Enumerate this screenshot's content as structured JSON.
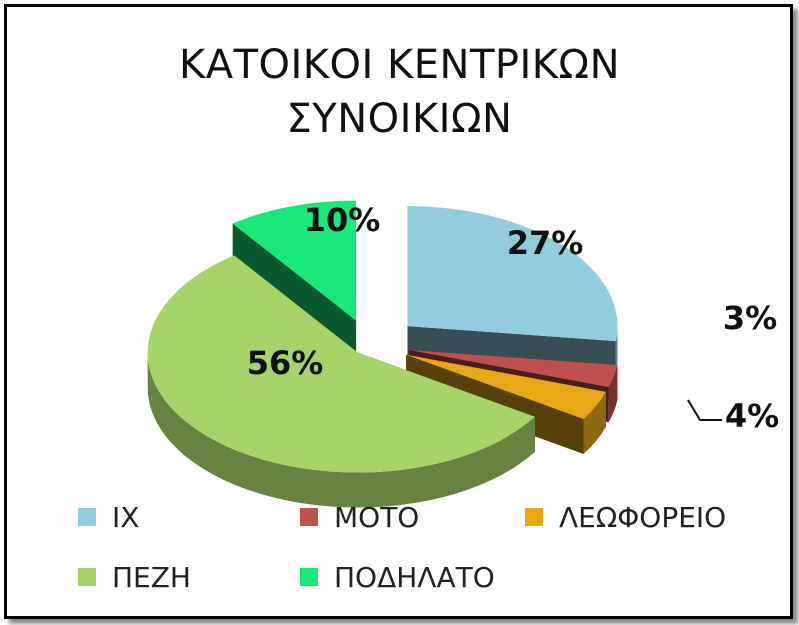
{
  "chart_data": {
    "type": "pie",
    "title_lines": [
      "ΚΑΤΟΙΚΟΙ ΚΕΝΤΡΙΚΩΝ",
      "ΣΥΝΟΙΚΙΩΝ"
    ],
    "categories": [
      "ΙΧ",
      "ΜΟΤΟ",
      "ΛΕΩΦΟΡΕΙΟ",
      "ΠΕΖΗ",
      "ΠΟΔΗΛΑΤΟ"
    ],
    "values": [
      27,
      3,
      4,
      56,
      10
    ],
    "data_labels": [
      "27%",
      "3%",
      "4%",
      "56%",
      "10%"
    ],
    "colors": [
      "#93CDDD",
      "#C0504D",
      "#E6A817",
      "#A6D46A",
      "#18E878"
    ],
    "legend_position": "bottom",
    "style": "3d-exploded"
  }
}
